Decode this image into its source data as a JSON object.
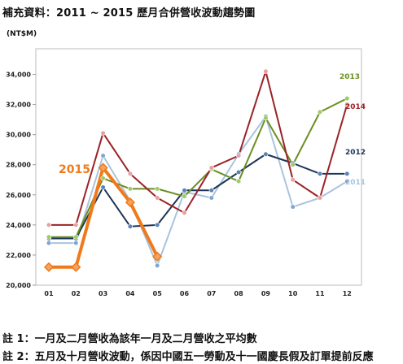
{
  "title": "補充資料：2011 ~ 2015 歷月合併營收波動趨勢圖",
  "notes": [
    "註 1：一月及二月營收為該年一月及二月營收之平均數",
    "註 2：五月及十月營收波動，係因中國五一勞動及十一國慶長假及訂單提前反應"
  ],
  "chart_data": {
    "type": "line",
    "unit_label": "(NT$M)",
    "categories": [
      "01",
      "02",
      "03",
      "04",
      "05",
      "06",
      "07",
      "08",
      "09",
      "10",
      "11",
      "12"
    ],
    "ylim": [
      20000,
      35000
    ],
    "yticks": [
      20000,
      22000,
      24000,
      26000,
      28000,
      30000,
      32000,
      34000
    ],
    "ytick_labels": [
      "20,000",
      "22,000",
      "24,000",
      "26,000",
      "28,000",
      "30,000",
      "32,000",
      "34,000"
    ],
    "grid": false,
    "series": [
      {
        "name": "2011",
        "color": "#a9c4de",
        "marker": "#7fa6cf",
        "values": [
          22800,
          22800,
          28600,
          25600,
          21300,
          26200,
          25800,
          28700,
          31200,
          25200,
          25800,
          26900
        ]
      },
      {
        "name": "2012",
        "color": "#1d3557",
        "marker": "#5b83b5",
        "values": [
          23100,
          23100,
          26500,
          23900,
          24000,
          26300,
          26300,
          27500,
          28700,
          28100,
          27400,
          27400
        ]
      },
      {
        "name": "2013",
        "color": "#6b8e23",
        "marker": "#9ccc65",
        "values": [
          23200,
          23200,
          27100,
          26400,
          26400,
          25900,
          27700,
          26900,
          31100,
          28000,
          31500,
          32400
        ]
      },
      {
        "name": "2014",
        "color": "#9b2226",
        "marker": "#e8a0a0",
        "values": [
          24000,
          24000,
          30100,
          27400,
          25800,
          24800,
          27800,
          28600,
          34200,
          27000,
          25800,
          32000
        ]
      },
      {
        "name": "2015",
        "color": "#f07a1a",
        "marker": "#f4a460",
        "values": [
          21200,
          21200,
          27800,
          25500,
          21900,
          null,
          null,
          null,
          null,
          null,
          null,
          null
        ]
      }
    ]
  }
}
